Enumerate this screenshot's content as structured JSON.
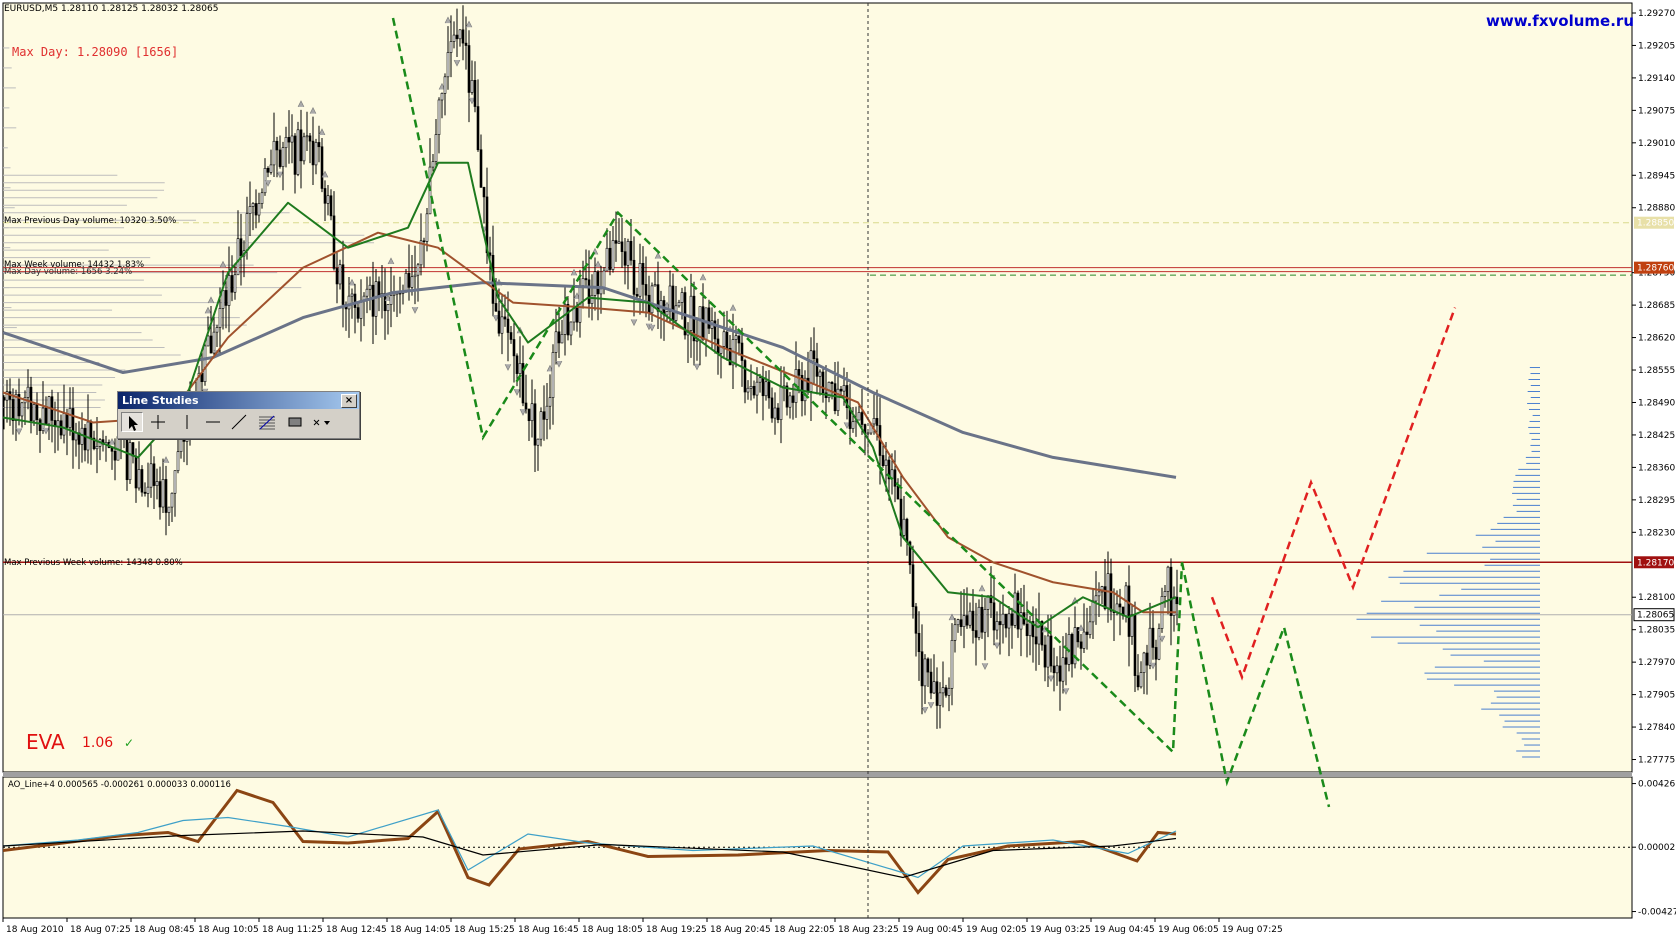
{
  "chart_info": {
    "symbol_line": "EURUSD,M5  1.28110 1.28125 1.28032 1.28065",
    "brand": "www.fxvolume.ru",
    "max_day_label": "Max Day: 1.28090 [1656]",
    "eva_label": "EVA",
    "eva_version": "1.06",
    "check_glyph": "✓",
    "level_labels": [
      "Max Previous Day volume: 10320 3.50%",
      "Max Week volume: 14432 1.83%",
      "Max Day volume: 1656 3.24%",
      "Max Previous Week volume: 14348 0.80%"
    ],
    "indicator_label": "AO_Line+4 0.000565 -0.000261 0.000033 0.000116"
  },
  "toolbar": {
    "title": "Line Studies",
    "close_glyph": "×",
    "tools": [
      "cursor-icon",
      "crosshair-icon",
      "vertical-line-icon",
      "horizontal-line-icon",
      "trendline-icon",
      "fibonacci-icon",
      "rectangle-icon",
      "arrows-dropdown-icon"
    ]
  },
  "chart_data": {
    "type": "candlestick",
    "price_axis": {
      "ticks": [
        "1.29270",
        "1.29205",
        "1.29140",
        "1.29075",
        "1.29010",
        "1.28945",
        "1.28880",
        "1.28750",
        "1.28685",
        "1.28620",
        "1.28555",
        "1.28490",
        "1.28425",
        "1.28360",
        "1.28295",
        "1.28230",
        "1.28100",
        "1.28035",
        "1.27970",
        "1.27905",
        "1.27840",
        "1.27775"
      ],
      "badges": [
        "1.28850",
        "1.28760",
        "1.28170",
        "1.28065"
      ],
      "range": [
        1.2775,
        1.2929
      ]
    },
    "indicator_axis": {
      "ticks": [
        "0.004261",
        "0.00002",
        "-0.00427"
      ],
      "range": [
        -0.0047,
        0.0047
      ]
    },
    "time_axis": [
      "18 Aug 2010",
      "18 Aug 07:25",
      "18 Aug 08:45",
      "18 Aug 10:05",
      "18 Aug 11:25",
      "18 Aug 12:45",
      "18 Aug 14:05",
      "18 Aug 15:25",
      "18 Aug 16:45",
      "18 Aug 18:05",
      "18 Aug 19:25",
      "18 Aug 20:45",
      "18 Aug 22:05",
      "18 Aug 23:25",
      "19 Aug 00:45",
      "19 Aug 02:05",
      "19 Aug 03:25",
      "19 Aug 04:45",
      "19 Aug 06:05",
      "19 Aug 07:25"
    ],
    "close_path": [
      [
        0,
        1.285
      ],
      [
        20,
        1.2846
      ],
      [
        40,
        1.2838
      ],
      [
        55,
        1.283
      ],
      [
        64,
        1.2852
      ],
      [
        72,
        1.2866
      ],
      [
        88,
        1.2898
      ],
      [
        104,
        1.29
      ],
      [
        114,
        1.2866
      ],
      [
        128,
        1.2872
      ],
      [
        138,
        1.2875
      ],
      [
        146,
        1.291
      ],
      [
        152,
        1.2925
      ],
      [
        158,
        1.2902
      ],
      [
        163,
        1.2868
      ],
      [
        170,
        1.2858
      ],
      [
        178,
        1.2842
      ],
      [
        186,
        1.2865
      ],
      [
        196,
        1.2872
      ],
      [
        206,
        1.288
      ],
      [
        214,
        1.287
      ],
      [
        222,
        1.2868
      ],
      [
        232,
        1.2865
      ],
      [
        240,
        1.2862
      ],
      [
        250,
        1.2852
      ],
      [
        260,
        1.2848
      ],
      [
        270,
        1.2856
      ],
      [
        282,
        1.2848
      ],
      [
        290,
        1.2846
      ],
      [
        300,
        1.2823
      ],
      [
        306,
        1.2796
      ],
      [
        312,
        1.279
      ],
      [
        318,
        1.2802
      ],
      [
        326,
        1.2806
      ],
      [
        336,
        1.2808
      ],
      [
        344,
        1.2802
      ],
      [
        352,
        1.2797
      ],
      [
        360,
        1.2803
      ],
      [
        368,
        1.2812
      ],
      [
        374,
        1.281
      ],
      [
        378,
        1.2795
      ],
      [
        384,
        1.2802
      ],
      [
        388,
        1.2813
      ],
      [
        391,
        1.2806
      ]
    ],
    "moving_averages": [
      {
        "color": "#6a7388",
        "values": [
          [
            0,
            1.2863
          ],
          [
            40,
            1.2855
          ],
          [
            70,
            1.2858
          ],
          [
            100,
            1.2866
          ],
          [
            130,
            1.2871
          ],
          [
            160,
            1.2873
          ],
          [
            200,
            1.2872
          ],
          [
            230,
            1.2866
          ],
          [
            260,
            1.286
          ],
          [
            290,
            1.2851
          ],
          [
            320,
            1.2843
          ],
          [
            350,
            1.2838
          ],
          [
            391,
            1.2834
          ]
        ]
      },
      {
        "color": "#a0522d",
        "values": [
          [
            0,
            1.2851
          ],
          [
            30,
            1.2845
          ],
          [
            55,
            1.2846
          ],
          [
            75,
            1.2862
          ],
          [
            100,
            1.2876
          ],
          [
            125,
            1.2883
          ],
          [
            145,
            1.288
          ],
          [
            170,
            1.2869
          ],
          [
            195,
            1.2868
          ],
          [
            215,
            1.2867
          ],
          [
            240,
            1.286
          ],
          [
            265,
            1.2854
          ],
          [
            285,
            1.2849
          ],
          [
            300,
            1.2834
          ],
          [
            315,
            1.2822
          ],
          [
            330,
            1.2817
          ],
          [
            350,
            1.2813
          ],
          [
            370,
            1.2811
          ],
          [
            380,
            1.2807
          ],
          [
            391,
            1.2807
          ]
        ]
      },
      {
        "color": "#1e7a1e",
        "values": [
          [
            0,
            1.2846
          ],
          [
            20,
            1.2844
          ],
          [
            45,
            1.2838
          ],
          [
            60,
            1.2848
          ],
          [
            75,
            1.2875
          ],
          [
            95,
            1.2889
          ],
          [
            115,
            1.288
          ],
          [
            135,
            1.2884
          ],
          [
            145,
            1.2897
          ],
          [
            155,
            1.2897
          ],
          [
            165,
            1.287
          ],
          [
            175,
            1.2861
          ],
          [
            195,
            1.287
          ],
          [
            215,
            1.2869
          ],
          [
            240,
            1.2858
          ],
          [
            260,
            1.2852
          ],
          [
            280,
            1.285
          ],
          [
            290,
            1.284
          ],
          [
            300,
            1.2822
          ],
          [
            315,
            1.2811
          ],
          [
            330,
            1.281
          ],
          [
            345,
            1.2804
          ],
          [
            360,
            1.281
          ],
          [
            375,
            1.2806
          ],
          [
            391,
            1.281
          ]
        ]
      }
    ],
    "horizontal_levels": [
      {
        "price": 1.2885,
        "color": "#d9d98c",
        "style": "dashed"
      },
      {
        "price": 1.2876,
        "color": "#c03030",
        "style": "solid"
      },
      {
        "price": 1.28752,
        "color": "#c03030",
        "style": "solid"
      },
      {
        "price": 1.28745,
        "color": "#2a8a2a",
        "style": "dashed"
      },
      {
        "price": 1.2817,
        "color": "#a01010",
        "style": "solid"
      },
      {
        "price": 1.28065,
        "color": "#b0b0b0",
        "style": "solid"
      }
    ],
    "pattern_green": [
      [
        130,
        1.2926
      ],
      [
        160,
        1.2842
      ],
      [
        205,
        1.2887
      ],
      [
        390,
        1.2779
      ],
      [
        393,
        1.2817
      ],
      [
        408,
        1.2773
      ],
      [
        427,
        1.2804
      ],
      [
        442,
        1.2768
      ]
    ],
    "forecast_green": [
      [
        393,
        1.2817
      ],
      [
        408,
        1.2773
      ],
      [
        427,
        1.2804
      ],
      [
        442,
        1.2768
      ]
    ],
    "forecast_red": [
      [
        403,
        1.281
      ],
      [
        413,
        1.2794
      ],
      [
        436,
        1.2833
      ],
      [
        450,
        1.2812
      ],
      [
        484,
        1.2868
      ]
    ],
    "indicator_lines": [
      {
        "color": "#8b4513",
        "values": [
          [
            0,
            -0.0002
          ],
          [
            20,
            0.0003
          ],
          [
            40,
            0.0008
          ],
          [
            55,
            0.001
          ],
          [
            65,
            0.0004
          ],
          [
            78,
            0.0038
          ],
          [
            90,
            0.003
          ],
          [
            100,
            0.0004
          ],
          [
            115,
            0.0003
          ],
          [
            135,
            0.0006
          ],
          [
            145,
            0.0024
          ],
          [
            155,
            -0.002
          ],
          [
            162,
            -0.0025
          ],
          [
            172,
            -0.0001
          ],
          [
            195,
            0.0004
          ],
          [
            215,
            -0.0006
          ],
          [
            245,
            -0.0005
          ],
          [
            275,
            -0.0002
          ],
          [
            295,
            -0.0003
          ],
          [
            305,
            -0.003
          ],
          [
            315,
            -0.0008
          ],
          [
            335,
            0.0001
          ],
          [
            360,
            0.0004
          ],
          [
            378,
            -0.0009
          ],
          [
            385,
            0.001
          ],
          [
            391,
            0.0009
          ]
        ]
      },
      {
        "color": "#3ea0c8",
        "values": [
          [
            0,
            0.0001
          ],
          [
            25,
            0.0005
          ],
          [
            45,
            0.001
          ],
          [
            60,
            0.0018
          ],
          [
            75,
            0.002
          ],
          [
            95,
            0.0014
          ],
          [
            115,
            0.0007
          ],
          [
            145,
            0.0025
          ],
          [
            155,
            -0.0015
          ],
          [
            175,
            0.0009
          ],
          [
            195,
            0.0003
          ],
          [
            230,
            -0.0002
          ],
          [
            270,
            0.0001
          ],
          [
            297,
            -0.0015
          ],
          [
            305,
            -0.002
          ],
          [
            320,
            0.0001
          ],
          [
            350,
            0.0005
          ],
          [
            375,
            -0.0004
          ],
          [
            391,
            0.0011
          ]
        ]
      },
      {
        "color": "#000000",
        "values": [
          [
            0,
            0.0001
          ],
          [
            60,
            0.0008
          ],
          [
            100,
            0.0011
          ],
          [
            140,
            0.0007
          ],
          [
            160,
            -0.0005
          ],
          [
            200,
            0.0002
          ],
          [
            260,
            -0.0003
          ],
          [
            300,
            -0.002
          ],
          [
            330,
            -0.0002
          ],
          [
            370,
            0.0001
          ],
          [
            391,
            0.0006
          ]
        ]
      }
    ]
  }
}
